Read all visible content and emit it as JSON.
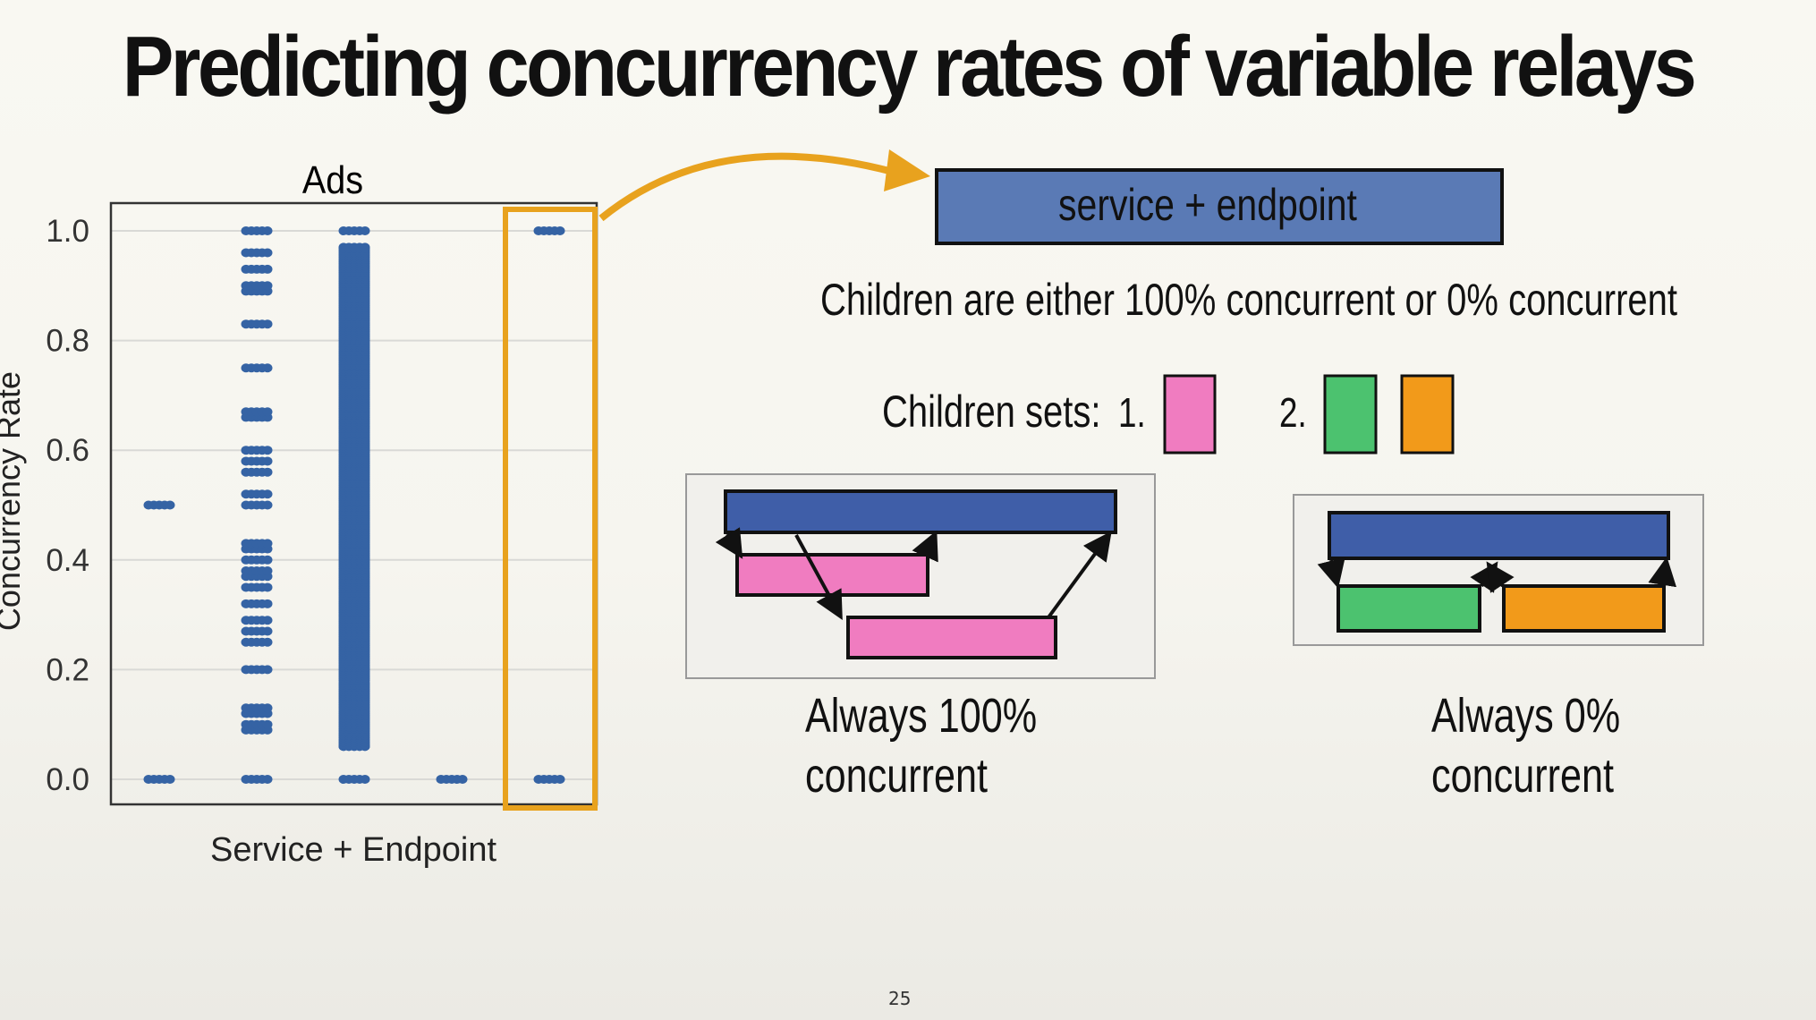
{
  "slide": {
    "title": "Predicting concurrency rates of variable relays",
    "page_number": "25"
  },
  "chart_data": {
    "type": "scatter",
    "title": "Ads",
    "xlabel": "Service + Endpoint",
    "ylabel": "Concurrency Rate",
    "ylim": [
      0,
      1
    ],
    "yticks": [
      "0.0",
      "0.2",
      "0.4",
      "0.6",
      "0.8",
      "1.0"
    ],
    "grid": "horizontal",
    "color": "#3563a4",
    "highlight_color": "#e8a21e",
    "highlighted_category": 5,
    "categories": [
      1,
      2,
      3,
      4,
      5
    ],
    "series": [
      {
        "category": 1,
        "values": [
          0.0,
          0.5
        ]
      },
      {
        "category": 2,
        "values": [
          0.0,
          0.09,
          0.1,
          0.12,
          0.13,
          0.2,
          0.25,
          0.27,
          0.29,
          0.32,
          0.35,
          0.37,
          0.38,
          0.4,
          0.42,
          0.43,
          0.5,
          0.52,
          0.56,
          0.58,
          0.6,
          0.66,
          0.67,
          0.75,
          0.83,
          0.89,
          0.9,
          0.93,
          0.96,
          1.0
        ]
      },
      {
        "category": 3,
        "values": [
          0.0,
          0.06,
          0.97,
          1.0
        ],
        "dense_range": [
          0.06,
          0.97
        ]
      },
      {
        "category": 4,
        "values": [
          0.0
        ]
      },
      {
        "category": 5,
        "values": [
          0.0,
          1.0
        ]
      }
    ]
  },
  "diagram": {
    "parent_label": "service + endpoint",
    "statement": "Children are either 100% concurrent or 0% concurrent",
    "children_sets_label": "Children sets:",
    "set1_label": "1.",
    "set2_label": "2.",
    "colors": {
      "parent": "#5a7ab5",
      "pink": "#f07cc0",
      "green": "#4cc26f",
      "orange": "#f29a1a",
      "dark_blue": "#3f5ea8"
    },
    "caption_left_line1": "Always 100%",
    "caption_left_line2": "concurrent",
    "caption_right_line1": "Always 0%",
    "caption_right_line2": "concurrent"
  }
}
